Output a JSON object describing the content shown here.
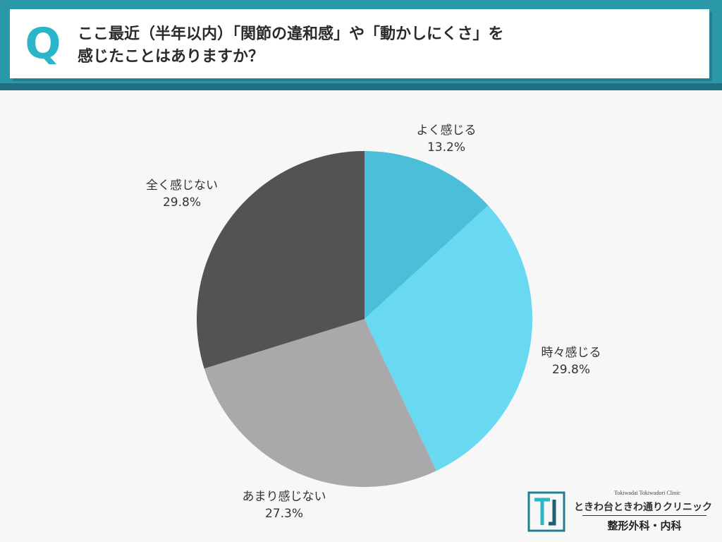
{
  "header": {
    "q_mark": "Q",
    "question_line1": "ここ最近（半年以内）「関節の違和感」や「動かしにくさ」を",
    "question_line2": "感じたことはありますか？"
  },
  "chart_data": {
    "type": "pie",
    "start_angle": "12 o'clock",
    "direction": "clockwise",
    "slices": [
      {
        "label": "よく感じる",
        "value": 13.2,
        "value_label": "13.2%",
        "color": "#4bbfda"
      },
      {
        "label": "時々感じる",
        "value": 29.8,
        "value_label": "29.8%",
        "color": "#68d9f1"
      },
      {
        "label": "あまり感じない",
        "value": 27.3,
        "value_label": "27.3%",
        "color": "#a9a8ab"
      },
      {
        "label": "全く感じない",
        "value": 29.8,
        "value_label": "29.8%",
        "color": "#545255"
      }
    ]
  },
  "logo": {
    "en": "Tokiwadai Tokiwadori Clinic",
    "jp": "ときわ台ときわ通りクリニック",
    "dept": "整形外科・内科"
  },
  "colors": {
    "header_band": "#2a98a8",
    "accent": "#2ab5c8"
  }
}
